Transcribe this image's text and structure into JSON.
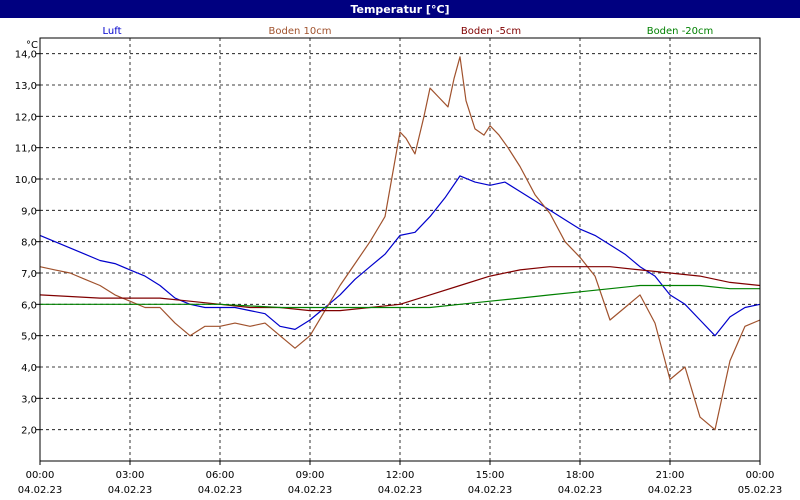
{
  "window": {
    "title": "Temperatur [°C]"
  },
  "chart_data": {
    "type": "line",
    "title": "Temperatur [°C]",
    "ylabel": "°C",
    "ylim": [
      1.0,
      14.5
    ],
    "y_ticks": [
      "2,0",
      "3,0",
      "4,0",
      "5,0",
      "6,0",
      "7,0",
      "8,0",
      "9,0",
      "10,0",
      "11,0",
      "12,0",
      "13,0",
      "14,0"
    ],
    "x_ticks": [
      {
        "time": "00:00",
        "date": "04.02.23"
      },
      {
        "time": "03:00",
        "date": "04.02.23"
      },
      {
        "time": "06:00",
        "date": "04.02.23"
      },
      {
        "time": "09:00",
        "date": "04.02.23"
      },
      {
        "time": "12:00",
        "date": "04.02.23"
      },
      {
        "time": "15:00",
        "date": "04.02.23"
      },
      {
        "time": "18:00",
        "date": "04.02.23"
      },
      {
        "time": "21:00",
        "date": "04.02.23"
      },
      {
        "time": "00:00",
        "date": "05.02.23"
      }
    ],
    "grid": true,
    "series": [
      {
        "name": "Luft",
        "color": "#0000cc",
        "x": [
          0,
          0.5,
          1,
          1.5,
          2,
          2.5,
          3,
          3.5,
          4,
          4.5,
          5,
          5.5,
          6,
          6.5,
          7,
          7.5,
          8,
          8.5,
          9,
          9.5,
          10,
          10.5,
          11,
          11.5,
          12,
          12.5,
          13,
          13.5,
          14,
          14.5,
          15,
          15.5,
          16,
          16.5,
          17,
          17.5,
          18,
          18.5,
          19,
          19.5,
          20,
          20.5,
          21,
          21.5,
          22,
          22.5,
          23,
          23.5,
          24
        ],
        "y": [
          8.2,
          8.0,
          7.8,
          7.6,
          7.4,
          7.3,
          7.1,
          6.9,
          6.6,
          6.2,
          6.0,
          5.9,
          5.9,
          5.9,
          5.8,
          5.7,
          5.3,
          5.2,
          5.5,
          5.9,
          6.3,
          6.8,
          7.2,
          7.6,
          8.2,
          8.3,
          8.8,
          9.4,
          10.1,
          9.9,
          9.8,
          9.9,
          9.6,
          9.3,
          9.0,
          8.7,
          8.4,
          8.2,
          7.9,
          7.6,
          7.2,
          6.9,
          6.3,
          6.0,
          5.5,
          5.0,
          5.6,
          5.9,
          6.0
        ]
      },
      {
        "name": "Boden 10cm",
        "color": "#a0522d",
        "x": [
          0,
          0.5,
          1,
          1.5,
          2,
          2.5,
          3,
          3.5,
          4,
          4.5,
          5,
          5.5,
          6,
          6.5,
          7,
          7.5,
          8,
          8.5,
          9,
          9.5,
          10,
          10.5,
          11,
          11.5,
          12,
          12.2,
          12.5,
          12.8,
          13,
          13.3,
          13.6,
          13.8,
          14,
          14.2,
          14.5,
          14.8,
          15,
          15.3,
          15.6,
          16,
          16.5,
          17,
          17.5,
          18,
          18.5,
          19,
          19.5,
          20,
          20.5,
          21,
          21.5,
          22,
          22.5,
          23,
          23.5,
          24
        ],
        "y": [
          7.2,
          7.1,
          7.0,
          6.8,
          6.6,
          6.3,
          6.1,
          5.9,
          5.9,
          5.4,
          5.0,
          5.3,
          5.3,
          5.4,
          5.3,
          5.4,
          5.0,
          4.6,
          5.0,
          5.8,
          6.6,
          7.3,
          8.0,
          8.8,
          11.5,
          11.3,
          10.8,
          12.0,
          12.9,
          12.6,
          12.3,
          13.2,
          13.9,
          12.5,
          11.6,
          11.4,
          11.7,
          11.4,
          11.0,
          10.4,
          9.5,
          8.9,
          8.0,
          7.5,
          6.9,
          5.5,
          5.9,
          6.3,
          5.4,
          3.6,
          4.0,
          2.4,
          2.0,
          4.2,
          5.3,
          5.5
        ]
      },
      {
        "name": "Boden -5cm",
        "color": "#800000",
        "x": [
          0,
          2,
          4,
          5,
          6,
          7,
          8,
          9,
          10,
          11,
          12,
          13,
          14,
          15,
          16,
          17,
          18,
          19,
          20,
          21,
          22,
          23,
          24
        ],
        "y": [
          6.3,
          6.2,
          6.2,
          6.1,
          6.0,
          5.9,
          5.9,
          5.8,
          5.8,
          5.9,
          6.0,
          6.3,
          6.6,
          6.9,
          7.1,
          7.2,
          7.2,
          7.2,
          7.1,
          7.0,
          6.9,
          6.7,
          6.6
        ]
      },
      {
        "name": "Boden -20cm",
        "color": "#008000",
        "x": [
          0,
          2,
          4,
          6,
          8,
          10,
          12,
          13,
          14,
          15,
          16,
          17,
          18,
          19,
          20,
          21,
          22,
          23,
          24
        ],
        "y": [
          6.0,
          6.0,
          6.0,
          6.0,
          5.9,
          5.9,
          5.9,
          5.9,
          6.0,
          6.1,
          6.2,
          6.3,
          6.4,
          6.5,
          6.6,
          6.6,
          6.6,
          6.5,
          6.5
        ]
      }
    ]
  }
}
